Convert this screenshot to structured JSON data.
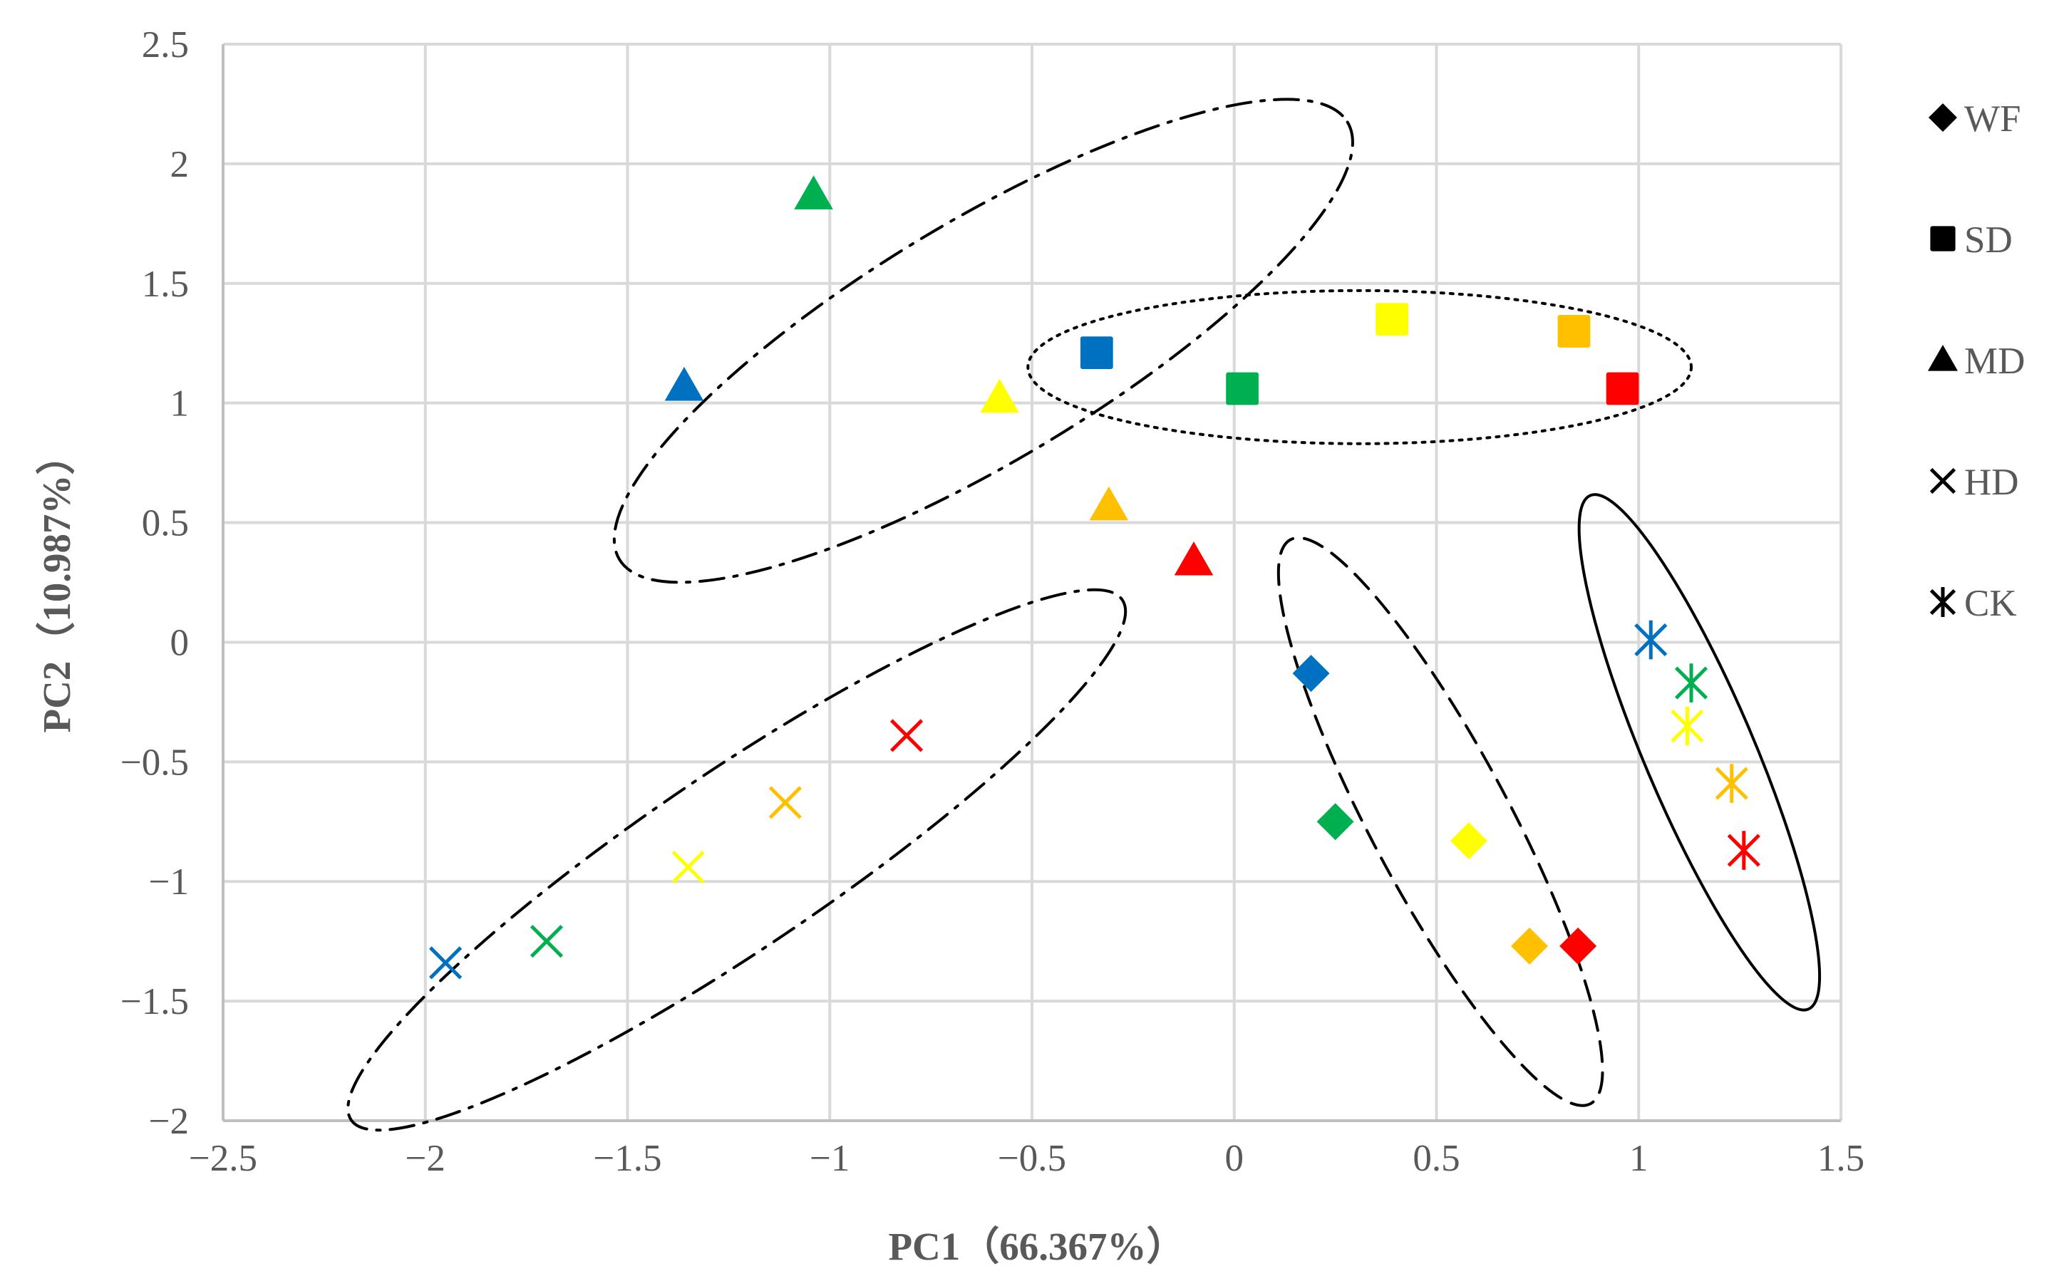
{
  "chart_data": {
    "type": "scatter",
    "title": "",
    "xlabel": "PC1（66.367%）",
    "ylabel": "PC2（10.987%）",
    "xlim": [
      -2.5,
      1.5
    ],
    "ylim": [
      -2,
      2.5
    ],
    "xticks": [
      -2.5,
      -2,
      -1.5,
      -1,
      -0.5,
      0,
      0.5,
      1,
      1.5
    ],
    "yticks": [
      -2,
      -1.5,
      -1,
      -0.5,
      0,
      0.5,
      1,
      1.5,
      2,
      2.5
    ],
    "xtick_labels": [
      "−2.5",
      "−2",
      "−1.5",
      "−1",
      "−0.5",
      "0",
      "0.5",
      "1",
      "1.5"
    ],
    "ytick_labels": [
      "−2",
      "−1.5",
      "−1",
      "−0.5",
      "0",
      "0.5",
      "1",
      "1.5",
      "2",
      "2.5"
    ],
    "grid": true,
    "legend_position": "right",
    "colors": {
      "blue": "#0070c0",
      "green": "#00b050",
      "yellow": "#ffff00",
      "orange": "#ffc000",
      "red": "#ff0000",
      "legend": "#000000"
    },
    "series": [
      {
        "name": "WF",
        "marker": "diamond",
        "points": [
          {
            "x": 0.19,
            "y": -0.13,
            "color": "blue"
          },
          {
            "x": 0.25,
            "y": -0.75,
            "color": "green"
          },
          {
            "x": 0.58,
            "y": -0.83,
            "color": "yellow"
          },
          {
            "x": 0.73,
            "y": -1.27,
            "color": "orange"
          },
          {
            "x": 0.85,
            "y": -1.27,
            "color": "red"
          }
        ]
      },
      {
        "name": "SD",
        "marker": "square",
        "points": [
          {
            "x": -0.34,
            "y": 1.21,
            "color": "blue"
          },
          {
            "x": 0.02,
            "y": 1.06,
            "color": "green"
          },
          {
            "x": 0.39,
            "y": 1.35,
            "color": "yellow"
          },
          {
            "x": 0.84,
            "y": 1.3,
            "color": "orange"
          },
          {
            "x": 0.96,
            "y": 1.06,
            "color": "red"
          }
        ]
      },
      {
        "name": "MD",
        "marker": "triangle",
        "points": [
          {
            "x": -1.36,
            "y": 1.07,
            "color": "blue"
          },
          {
            "x": -1.04,
            "y": 1.87,
            "color": "green"
          },
          {
            "x": -0.58,
            "y": 1.02,
            "color": "yellow"
          },
          {
            "x": -0.31,
            "y": 0.57,
            "color": "orange"
          },
          {
            "x": -0.1,
            "y": 0.34,
            "color": "red"
          }
        ]
      },
      {
        "name": "HD",
        "marker": "x",
        "points": [
          {
            "x": -1.95,
            "y": -1.34,
            "color": "blue"
          },
          {
            "x": -1.7,
            "y": -1.25,
            "color": "green"
          },
          {
            "x": -1.35,
            "y": -0.94,
            "color": "yellow"
          },
          {
            "x": -1.11,
            "y": -0.67,
            "color": "orange"
          },
          {
            "x": -0.81,
            "y": -0.39,
            "color": "red"
          }
        ]
      },
      {
        "name": "CK",
        "marker": "asterisk",
        "points": [
          {
            "x": 1.03,
            "y": 0.01,
            "color": "blue"
          },
          {
            "x": 1.13,
            "y": -0.17,
            "color": "green"
          },
          {
            "x": 1.12,
            "y": -0.35,
            "color": "yellow"
          },
          {
            "x": 1.23,
            "y": -0.59,
            "color": "orange"
          },
          {
            "x": 1.26,
            "y": -0.87,
            "color": "red"
          }
        ]
      }
    ],
    "annotations": [
      {
        "type": "ellipse",
        "group": "MD",
        "style": "dash-dot",
        "cx": -0.62,
        "cy": 1.26,
        "rx": 1.05,
        "ry": 0.5,
        "angle_deg": 31
      },
      {
        "type": "ellipse",
        "group": "SD",
        "style": "dotted",
        "cx": 0.31,
        "cy": 1.15,
        "rx": 0.82,
        "ry": 0.32,
        "angle_deg": 0
      },
      {
        "type": "ellipse",
        "group": "HD",
        "style": "dash-dot",
        "cx": -1.23,
        "cy": -0.91,
        "rx": 1.15,
        "ry": 0.37,
        "angle_deg": 34
      },
      {
        "type": "ellipse",
        "group": "WF",
        "style": "dashed",
        "cx": 0.51,
        "cy": -0.75,
        "rx": 0.79,
        "ry": 0.29,
        "angle_deg": -62
      },
      {
        "type": "ellipse",
        "group": "CK",
        "style": "solid",
        "cx": 1.15,
        "cy": -0.46,
        "rx": 0.69,
        "ry": 0.23,
        "angle_deg": -67
      }
    ]
  }
}
